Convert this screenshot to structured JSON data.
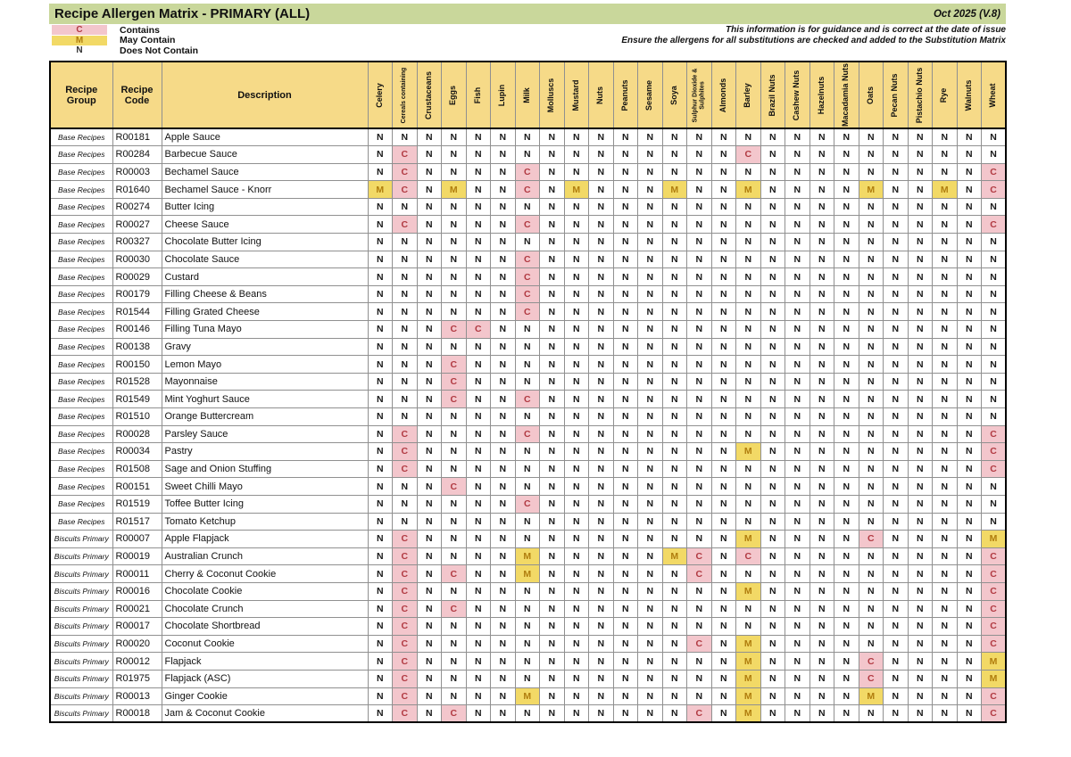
{
  "header": {
    "title": "Recipe Allergen Matrix - PRIMARY (ALL)",
    "version": "Oct 2025 (V.8)",
    "disclaimer_line1": "This information is for guidance and is correct at the date of issue",
    "disclaimer_line2": "Ensure the allergens for all substitutions are checked and added to the Substitution Matrix"
  },
  "legend": [
    {
      "code": "C",
      "label": "Contains"
    },
    {
      "code": "M",
      "label": "May Contain"
    },
    {
      "code": "N",
      "label": "Does Not Contain"
    }
  ],
  "colors": {
    "title_bar_bg": "#C9D79B",
    "column_header_bg": "#F6DA88",
    "contains_bg": "#F3C6CC",
    "contains_text": "#B13A42",
    "may_contain_bg": "#F2D966",
    "may_contain_text": "#B07D0E",
    "grid_line": "#909090"
  },
  "table": {
    "fixed_headers": [
      "Recipe Group",
      "Recipe Code",
      "Description"
    ],
    "allergen_headers": [
      "Celery",
      "Cereals containing",
      "Crustaceans",
      "Eggs",
      "Fish",
      "Lupin",
      "Milk",
      "Molluscs",
      "Mustard",
      "Nuts",
      "Peanuts",
      "Sesame",
      "Soya",
      "Sulphur Dioxide & Sulphites",
      "Almonds",
      "Barley",
      "Brazil Nuts",
      "Cashew Nuts",
      "Hazelnuts",
      "Macadamia Nuts",
      "Oats",
      "Pecan Nuts",
      "Pistachio Nuts",
      "Rye",
      "Walnuts",
      "Wheat"
    ],
    "rows": [
      {
        "group": "Base Recipes",
        "code": "R00181",
        "description": "Apple Sauce",
        "values": "NNNNNNNNNNNNNNNNNNNNNNNNNN"
      },
      {
        "group": "Base Recipes",
        "code": "R00284",
        "description": "Barbecue Sauce",
        "values": "NCNNNNNNNNNNNNNCNNNNNNNNNN"
      },
      {
        "group": "Base Recipes",
        "code": "R00003",
        "description": "Bechamel Sauce",
        "values": "NCNNNNCNNNNNNNNNNNNNNNNNNC"
      },
      {
        "group": "Base Recipes",
        "code": "R01640",
        "description": "Bechamel Sauce - Knorr",
        "values": "MCNMNNCNMNNNMNNMNNNNMNNMNC"
      },
      {
        "group": "Base Recipes",
        "code": "R00274",
        "description": "Butter Icing",
        "values": "NNNNNNNNNNNNNNNNNNNNNNNNNN"
      },
      {
        "group": "Base Recipes",
        "code": "R00027",
        "description": "Cheese Sauce",
        "values": "NCNNNNCNNNNNNNNNNNNNNNNNNC"
      },
      {
        "group": "Base Recipes",
        "code": "R00327",
        "description": "Chocolate Butter Icing",
        "values": "NNNNNNNNNNNNNNNNNNNNNNNNNN"
      },
      {
        "group": "Base Recipes",
        "code": "R00030",
        "description": "Chocolate Sauce",
        "values": "NNNNNNCNNNNNNNNNNNNNNNNNNN"
      },
      {
        "group": "Base Recipes",
        "code": "R00029",
        "description": "Custard",
        "values": "NNNNNNCNNNNNNNNNNNNNNNNNNN"
      },
      {
        "group": "Base Recipes",
        "code": "R00179",
        "description": "Filling Cheese & Beans",
        "values": "NNNNNNCNNNNNNNNNNNNNNNNNNN"
      },
      {
        "group": "Base Recipes",
        "code": "R01544",
        "description": "Filling Grated Cheese",
        "values": "NNNNNNCNNNNNNNNNNNNNNNNNNN"
      },
      {
        "group": "Base Recipes",
        "code": "R00146",
        "description": "Filling Tuna Mayo",
        "values": "NNNCCNNNNNNNNNNNNNNNNNNNNN"
      },
      {
        "group": "Base Recipes",
        "code": "R00138",
        "description": "Gravy",
        "values": "NNNNNNNNNNNNNNNNNNNNNNNNNN"
      },
      {
        "group": "Base Recipes",
        "code": "R00150",
        "description": "Lemon Mayo",
        "values": "NNNCNNNNNNNNNNNNNNNNNNNNNN"
      },
      {
        "group": "Base Recipes",
        "code": "R01528",
        "description": "Mayonnaise",
        "values": "NNNCNNNNNNNNNNNNNNNNNNNNNN"
      },
      {
        "group": "Base Recipes",
        "code": "R01549",
        "description": "Mint Yoghurt Sauce",
        "values": "NNNCNNCNNNNNNNNNNNNNNNNNNN"
      },
      {
        "group": "Base Recipes",
        "code": "R01510",
        "description": "Orange Buttercream",
        "values": "NNNNNNNNNNNNNNNNNNNNNNNNNN"
      },
      {
        "group": "Base Recipes",
        "code": "R00028",
        "description": "Parsley Sauce",
        "values": "NCNNNNCNNNNNNNNNNNNNNNNNNC"
      },
      {
        "group": "Base Recipes",
        "code": "R00034",
        "description": "Pastry",
        "values": "NCNNNNNNNNNNNNNMNNNNNNNNNC"
      },
      {
        "group": "Base Recipes",
        "code": "R01508",
        "description": "Sage and Onion Stuffing",
        "values": "NCNNNNNNNNNNNNNNNNNNNNNNNC"
      },
      {
        "group": "Base Recipes",
        "code": "R00151",
        "description": "Sweet Chilli Mayo",
        "values": "NNNCNNNNNNNNNNNNNNNNNNNNNN"
      },
      {
        "group": "Base Recipes",
        "code": "R01519",
        "description": "Toffee Butter Icing",
        "values": "NNNNNNCNNNNNNNNNNNNNNNNNNN"
      },
      {
        "group": "Base Recipes",
        "code": "R01517",
        "description": "Tomato Ketchup",
        "values": "NNNNNNNNNNNNNNNNNNNNNNNNNN"
      },
      {
        "group": "Biscuits Primary",
        "code": "R00007",
        "description": "Apple Flapjack",
        "values": "NCNNNNNNNNNNNNNMNNNNCNNNNM"
      },
      {
        "group": "Biscuits Primary",
        "code": "R00019",
        "description": "Australian Crunch",
        "values": "NCNNNNMNNNNNMCNCNNNNNNNNNC"
      },
      {
        "group": "Biscuits Primary",
        "code": "R00011",
        "description": "Cherry & Coconut Cookie",
        "values": "NCNCNNMNNNNNNCNNNNNNNNNNNC"
      },
      {
        "group": "Biscuits Primary",
        "code": "R00016",
        "description": "Chocolate Cookie",
        "values": "NCNNNNNNNNNNNNNMNNNNNNNNNC"
      },
      {
        "group": "Biscuits Primary",
        "code": "R00021",
        "description": "Chocolate Crunch",
        "values": "NCNCNNNNNNNNNNNNNNNNNNNNNC"
      },
      {
        "group": "Biscuits Primary",
        "code": "R00017",
        "description": "Chocolate Shortbread",
        "values": "NCNNNNNNNNNNNNNNNNNNNNNNNC"
      },
      {
        "group": "Biscuits Primary",
        "code": "R00020",
        "description": "Coconut Cookie",
        "values": "NCNNNNNNNNNNNCNMNNNNNNNNNC"
      },
      {
        "group": "Biscuits Primary",
        "code": "R00012",
        "description": "Flapjack",
        "values": "NCNNNNNNNNNNNNNMNNNNCNNNNM"
      },
      {
        "group": "Biscuits Primary",
        "code": "R01975",
        "description": "Flapjack (ASC)",
        "values": "NCNNNNNNNNNNNNNMNNNNCNNNNM"
      },
      {
        "group": "Biscuits Primary",
        "code": "R00013",
        "description": "Ginger Cookie",
        "values": "NCNNNNMNNNNNNNNMNNNNMNNNNC"
      },
      {
        "group": "Biscuits Primary",
        "code": "R00018",
        "description": "Jam & Coconut Cookie",
        "values": "NCNCNNNNNNNNNCNMNNNNNNNNNC"
      }
    ]
  }
}
